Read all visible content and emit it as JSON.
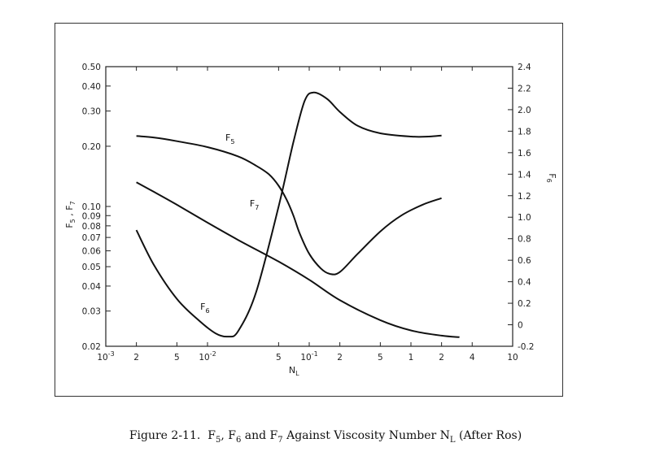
{
  "caption": {
    "prefix": "Figure 2-11.",
    "body": [
      "F",
      "5",
      ", F",
      "6",
      " and F",
      "7",
      " Against Viscosity Number N",
      "L",
      " (After Ros)"
    ]
  },
  "chart_data": {
    "type": "line",
    "title": "",
    "xlabel": {
      "base": "N",
      "sub": "L"
    },
    "ylabel_left": {
      "parts": [
        "F",
        "5",
        " , F",
        "7"
      ]
    },
    "ylabel_right": {
      "base": "F",
      "sub": "6"
    },
    "x_scale": "log",
    "xlim": [
      0.001,
      10
    ],
    "x_ticks": [
      {
        "v": 0.001,
        "label": "10",
        "sup": "-3"
      },
      {
        "v": 0.002,
        "label": "2"
      },
      {
        "v": 0.005,
        "label": "5"
      },
      {
        "v": 0.01,
        "label": "10",
        "sup": "-2"
      },
      {
        "v": 0.05,
        "label": "5"
      },
      {
        "v": 0.1,
        "label": "10",
        "sup": "-1"
      },
      {
        "v": 0.2,
        "label": "2"
      },
      {
        "v": 0.5,
        "label": "5"
      },
      {
        "v": 1,
        "label": "1"
      },
      {
        "v": 2,
        "label": "2"
      },
      {
        "v": 4,
        "label": "4"
      },
      {
        "v": 10,
        "label": "10"
      }
    ],
    "y_left_scale": "log",
    "y_left_lim": [
      0.02,
      0.5
    ],
    "y_left_ticks": [
      "0.02",
      "0.03",
      "0.04",
      "0.05",
      "0.06",
      "0.07",
      "0.08",
      "0.09",
      "0.10",
      "0.20",
      "0.30",
      "0.40",
      "0.50"
    ],
    "y_right_scale": "linear",
    "y_right_lim": [
      -0.2,
      2.4
    ],
    "y_right_ticks": [
      "-0.2",
      "0",
      "0.2",
      "0.4",
      "0.6",
      "0.8",
      "1.0",
      "1.2",
      "1.4",
      "1.6",
      "1.8",
      "2.0",
      "2.2",
      "2.4"
    ],
    "series": [
      {
        "name": "F5",
        "label_base": "F",
        "label_sub": "5",
        "axis": "left",
        "points": [
          [
            0.002,
            0.225
          ],
          [
            0.003,
            0.221
          ],
          [
            0.005,
            0.212
          ],
          [
            0.01,
            0.198
          ],
          [
            0.02,
            0.178
          ],
          [
            0.03,
            0.16
          ],
          [
            0.04,
            0.145
          ],
          [
            0.05,
            0.127
          ],
          [
            0.06,
            0.108
          ],
          [
            0.07,
            0.09
          ],
          [
            0.08,
            0.074
          ],
          [
            0.1,
            0.058
          ],
          [
            0.13,
            0.049
          ],
          [
            0.16,
            0.046
          ],
          [
            0.2,
            0.047
          ],
          [
            0.3,
            0.058
          ],
          [
            0.5,
            0.075
          ],
          [
            0.8,
            0.09
          ],
          [
            1.3,
            0.102
          ],
          [
            2,
            0.11
          ]
        ],
        "label_at": [
          0.015,
          0.213
        ]
      },
      {
        "name": "F7",
        "label_base": "F",
        "label_sub": "7",
        "axis": "left",
        "points": [
          [
            0.002,
            0.132
          ],
          [
            0.003,
            0.118
          ],
          [
            0.005,
            0.102
          ],
          [
            0.01,
            0.083
          ],
          [
            0.02,
            0.068
          ],
          [
            0.05,
            0.053
          ],
          [
            0.1,
            0.043
          ],
          [
            0.2,
            0.034
          ],
          [
            0.5,
            0.027
          ],
          [
            1,
            0.024
          ],
          [
            2,
            0.0226
          ],
          [
            3,
            0.0222
          ]
        ],
        "label_at": [
          0.026,
          0.1
        ]
      },
      {
        "name": "F6",
        "label_base": "F",
        "label_sub": "6",
        "axis": "right",
        "points": [
          [
            0.002,
            0.88
          ],
          [
            0.003,
            0.55
          ],
          [
            0.005,
            0.24
          ],
          [
            0.008,
            0.05
          ],
          [
            0.012,
            -0.08
          ],
          [
            0.016,
            -0.11
          ],
          [
            0.02,
            -0.06
          ],
          [
            0.03,
            0.3
          ],
          [
            0.05,
            1.1
          ],
          [
            0.07,
            1.7
          ],
          [
            0.09,
            2.08
          ],
          [
            0.11,
            2.16
          ],
          [
            0.15,
            2.1
          ],
          [
            0.2,
            1.98
          ],
          [
            0.3,
            1.85
          ],
          [
            0.5,
            1.78
          ],
          [
            1,
            1.75
          ],
          [
            1.5,
            1.75
          ],
          [
            2,
            1.76
          ]
        ],
        "label_at": [
          0.0085,
          0.14
        ]
      }
    ]
  }
}
